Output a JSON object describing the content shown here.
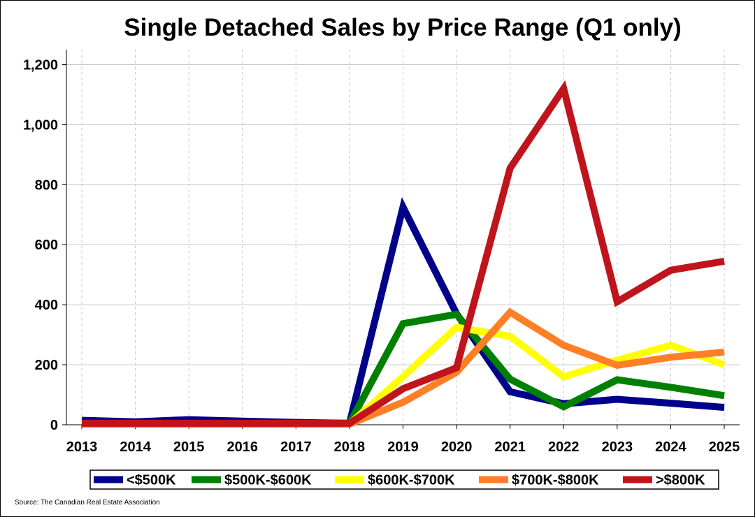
{
  "chart_data": {
    "type": "line",
    "title": "Single Detached Sales by Price Range (Q1 only)",
    "xlabel": "",
    "ylabel": "",
    "x": [
      "2013",
      "2014",
      "2015",
      "2016",
      "2017",
      "2018",
      "2019",
      "2020",
      "2021",
      "2022",
      "2023",
      "2024",
      "2025"
    ],
    "y_ticks": [
      "0",
      "200",
      "400",
      "600",
      "800",
      "1,000",
      "1,200"
    ],
    "ylim": [
      0,
      1250
    ],
    "grid": "on",
    "legend_position": "bottom",
    "series": [
      {
        "name": "<$500K",
        "color": "#00008b",
        "values": [
          15,
          10,
          17,
          12,
          8,
          5,
          725,
          370,
          110,
          70,
          85,
          72,
          58
        ]
      },
      {
        "name": "$500K-$600K",
        "color": "#008000",
        "values": [
          5,
          5,
          5,
          5,
          5,
          5,
          337,
          368,
          152,
          60,
          150,
          125,
          97
        ]
      },
      {
        "name": "$600K-$700K",
        "color": "#ffff00",
        "values": [
          3,
          3,
          3,
          3,
          3,
          3,
          160,
          325,
          295,
          160,
          215,
          265,
          200
        ]
      },
      {
        "name": "$700K-$800K",
        "color": "#ff7f27",
        "values": [
          2,
          2,
          2,
          2,
          2,
          2,
          75,
          175,
          375,
          265,
          198,
          225,
          242
        ]
      },
      {
        "name": ">$800K",
        "color": "#c0141c",
        "values": [
          5,
          5,
          5,
          5,
          5,
          5,
          120,
          190,
          855,
          1120,
          410,
          515,
          545
        ]
      }
    ]
  },
  "source": "Source: The Canadian Real Estate Association"
}
